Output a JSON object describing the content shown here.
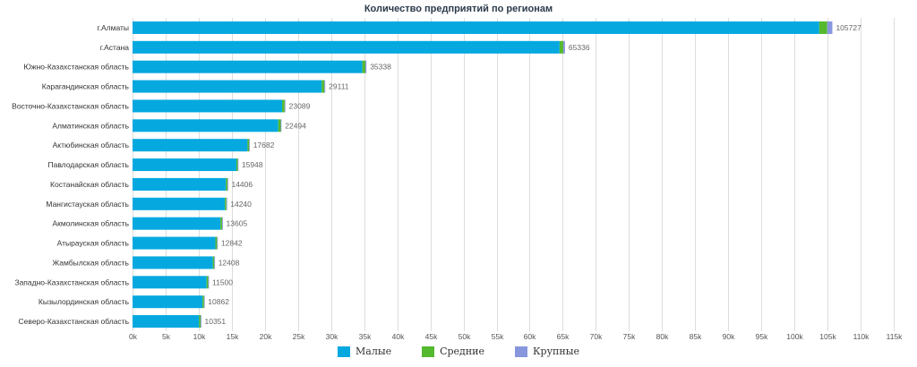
{
  "chart_data": {
    "type": "bar",
    "orientation": "horizontal",
    "stacked": true,
    "title": "Количество предприятий по регионам",
    "categories": [
      "г.Алматы",
      "г.Астана",
      "Южно-Казахстанская область",
      "Карагандинская область",
      "Восточно-Казахстанская область",
      "Алматинская область",
      "Актюбинская область",
      "Павлодарская область",
      "Костанайская область",
      "Мангистауская область",
      "Акмолинская область",
      "Атырауская область",
      "Жамбылская область",
      "Западно-Казахстанская область",
      "Кызылординская область",
      "Северо-Казахстанская область"
    ],
    "series": [
      {
        "name": "Малые",
        "color": "#05a9e0",
        "values": [
          103750,
          64520,
          34720,
          28580,
          22600,
          22010,
          17370,
          15690,
          14110,
          13950,
          13290,
          12520,
          12130,
          11190,
          10570,
          10050
        ]
      },
      {
        "name": "Средние",
        "color": "#55b92e",
        "values": [
          1200,
          550,
          450,
          400,
          380,
          380,
          250,
          200,
          230,
          230,
          250,
          250,
          220,
          250,
          230,
          250
        ]
      },
      {
        "name": "Крупные",
        "color": "#8896de",
        "values": [
          777,
          266,
          168,
          131,
          109,
          104,
          62,
          58,
          66,
          60,
          65,
          72,
          58,
          60,
          62,
          51
        ]
      }
    ],
    "totals": [
      105727,
      65336,
      35338,
      29111,
      23089,
      22494,
      17682,
      15948,
      14406,
      14240,
      13605,
      12842,
      12408,
      11500,
      10862,
      10351
    ],
    "x_ticks": [
      "0k",
      "5k",
      "10k",
      "15k",
      "20k",
      "25k",
      "30k",
      "35k",
      "40k",
      "45k",
      "50k",
      "55k",
      "60k",
      "65k",
      "70k",
      "75k",
      "80k",
      "85k",
      "90k",
      "95k",
      "100k",
      "105k",
      "110k",
      "115k"
    ],
    "xlim": [
      0,
      115000
    ],
    "grid": true,
    "legend_position": "bottom"
  }
}
